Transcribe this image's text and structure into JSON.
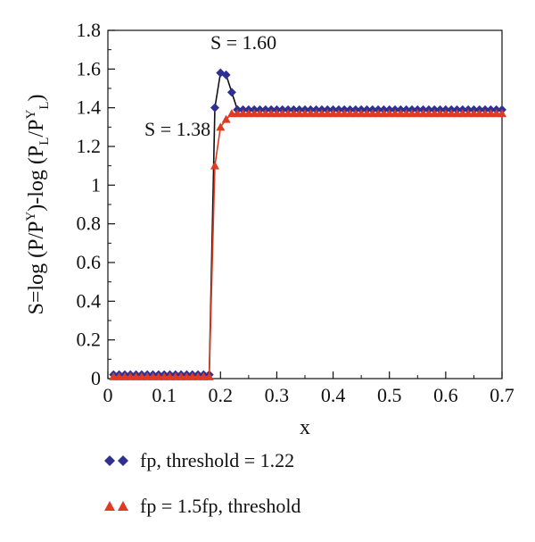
{
  "chart_data": {
    "type": "line",
    "xlabel": "x",
    "ylabel": "S=log (P/P^Y)-log (P_L/P^Y_L)",
    "xlim": [
      0,
      0.7
    ],
    "ylim": [
      0,
      1.8
    ],
    "xticks": [
      "0",
      "0.1",
      "0.2",
      "0.3",
      "0.4",
      "0.5",
      "0.6",
      "0.7"
    ],
    "yticks": [
      "0",
      "0.2",
      "0.4",
      "0.6",
      "0.8",
      "1",
      "1.2",
      "1.4",
      "1.6",
      "1.8"
    ],
    "grid": false,
    "legend_position": "bottom-left",
    "annotations": [
      {
        "text": "S = 1.60",
        "x": 0.205,
        "y": 1.6
      },
      {
        "text": "S = 1.38",
        "x": 0.185,
        "y": 1.38
      }
    ],
    "series": [
      {
        "name": "fp, threshold = 1.22",
        "marker": "diamond",
        "color": "#2e3192",
        "x": [
          0.01,
          0.02,
          0.03,
          0.04,
          0.05,
          0.06,
          0.07,
          0.08,
          0.09,
          0.1,
          0.11,
          0.12,
          0.13,
          0.14,
          0.15,
          0.16,
          0.17,
          0.18,
          0.19,
          0.2,
          0.21,
          0.22,
          0.23,
          0.24,
          0.25,
          0.26,
          0.27,
          0.28,
          0.29,
          0.3,
          0.31,
          0.32,
          0.33,
          0.34,
          0.35,
          0.36,
          0.37,
          0.38,
          0.39,
          0.4,
          0.41,
          0.42,
          0.43,
          0.44,
          0.45,
          0.46,
          0.47,
          0.48,
          0.49,
          0.5,
          0.51,
          0.52,
          0.53,
          0.54,
          0.55,
          0.56,
          0.57,
          0.58,
          0.59,
          0.6,
          0.61,
          0.62,
          0.63,
          0.64,
          0.65,
          0.66,
          0.67,
          0.68,
          0.69,
          0.7
        ],
        "y": [
          0.02,
          0.02,
          0.02,
          0.02,
          0.02,
          0.02,
          0.02,
          0.02,
          0.02,
          0.02,
          0.02,
          0.02,
          0.02,
          0.02,
          0.02,
          0.02,
          0.02,
          0.02,
          1.4,
          1.58,
          1.57,
          1.48,
          1.39,
          1.39,
          1.39,
          1.39,
          1.39,
          1.39,
          1.39,
          1.39,
          1.39,
          1.39,
          1.39,
          1.39,
          1.39,
          1.39,
          1.39,
          1.39,
          1.39,
          1.39,
          1.39,
          1.39,
          1.39,
          1.39,
          1.39,
          1.39,
          1.39,
          1.39,
          1.39,
          1.39,
          1.39,
          1.39,
          1.39,
          1.39,
          1.39,
          1.39,
          1.39,
          1.39,
          1.39,
          1.39,
          1.39,
          1.39,
          1.39,
          1.39,
          1.39,
          1.39,
          1.39,
          1.39,
          1.39,
          1.39
        ]
      },
      {
        "name": "fp = 1.5fp, threshold",
        "marker": "triangle",
        "color": "#e03a22",
        "x": [
          0.01,
          0.02,
          0.03,
          0.04,
          0.05,
          0.06,
          0.07,
          0.08,
          0.09,
          0.1,
          0.11,
          0.12,
          0.13,
          0.14,
          0.15,
          0.16,
          0.17,
          0.18,
          0.19,
          0.2,
          0.21,
          0.22,
          0.23,
          0.24,
          0.25,
          0.26,
          0.27,
          0.28,
          0.29,
          0.3,
          0.31,
          0.32,
          0.33,
          0.34,
          0.35,
          0.36,
          0.37,
          0.38,
          0.39,
          0.4,
          0.41,
          0.42,
          0.43,
          0.44,
          0.45,
          0.46,
          0.47,
          0.48,
          0.49,
          0.5,
          0.51,
          0.52,
          0.53,
          0.54,
          0.55,
          0.56,
          0.57,
          0.58,
          0.59,
          0.6,
          0.61,
          0.62,
          0.63,
          0.64,
          0.65,
          0.66,
          0.67,
          0.68,
          0.69,
          0.7
        ],
        "y": [
          0.01,
          0.01,
          0.01,
          0.01,
          0.01,
          0.01,
          0.01,
          0.01,
          0.01,
          0.01,
          0.01,
          0.01,
          0.01,
          0.01,
          0.01,
          0.01,
          0.01,
          0.01,
          1.1,
          1.3,
          1.34,
          1.37,
          1.37,
          1.37,
          1.37,
          1.37,
          1.37,
          1.37,
          1.37,
          1.37,
          1.37,
          1.37,
          1.37,
          1.37,
          1.37,
          1.37,
          1.37,
          1.37,
          1.37,
          1.37,
          1.37,
          1.37,
          1.37,
          1.37,
          1.37,
          1.37,
          1.37,
          1.37,
          1.37,
          1.37,
          1.37,
          1.37,
          1.37,
          1.37,
          1.37,
          1.37,
          1.37,
          1.37,
          1.37,
          1.37,
          1.37,
          1.37,
          1.37,
          1.37,
          1.37,
          1.37,
          1.37,
          1.37,
          1.37,
          1.37
        ]
      }
    ]
  }
}
